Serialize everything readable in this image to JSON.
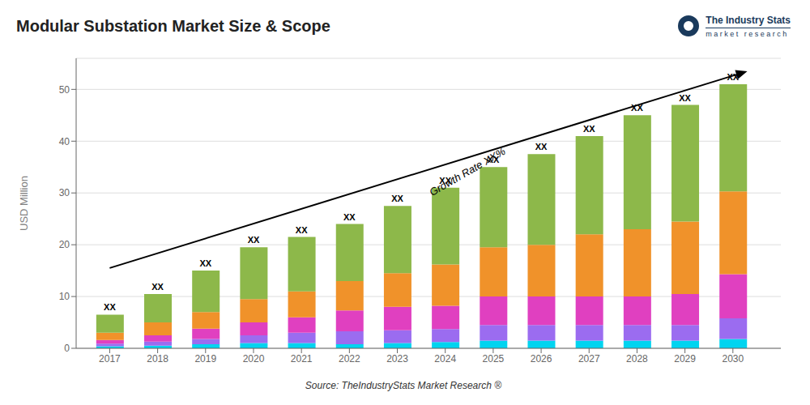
{
  "chart_data": {
    "type": "bar",
    "title": "Modular Substation Market Size & Scope",
    "ylabel": "USD Million",
    "source": "Source: TheIndustryStats Market Research ®",
    "logo": [
      "The Industry Stats",
      "m a r k e t   r e s e a r c h"
    ],
    "x": [
      2017,
      2018,
      2019,
      2020,
      2021,
      2022,
      2023,
      2024,
      2025,
      2026,
      2027,
      2028,
      2029,
      2030
    ],
    "series": [
      {
        "color": "#00d4f0",
        "values": [
          0.4,
          0.5,
          0.8,
          1.0,
          1.0,
          0.8,
          1.0,
          1.2,
          1.5,
          1.5,
          1.5,
          1.5,
          1.5,
          1.8
        ]
      },
      {
        "color": "#9b6cf0",
        "values": [
          0.5,
          0.8,
          1.0,
          1.5,
          2.0,
          2.5,
          2.5,
          2.5,
          3.0,
          3.0,
          3.0,
          3.0,
          3.0,
          4.0
        ]
      },
      {
        "color": "#e040c0",
        "values": [
          0.7,
          1.2,
          2.0,
          2.5,
          3.0,
          4.0,
          4.5,
          4.5,
          5.5,
          5.5,
          5.5,
          5.5,
          6.0,
          8.5
        ]
      },
      {
        "color": "#f0922a",
        "values": [
          1.4,
          2.5,
          3.2,
          4.5,
          5.0,
          5.7,
          6.5,
          8.0,
          9.5,
          10.0,
          12.0,
          13.0,
          14.0,
          16.0
        ]
      },
      {
        "color": "#8db84a",
        "values": [
          3.5,
          5.5,
          8.0,
          10.0,
          10.5,
          11.0,
          13.0,
          14.8,
          15.5,
          17.5,
          19.0,
          22.0,
          22.5,
          20.7
        ]
      }
    ],
    "stacked": true,
    "xlim": [
      2016.3,
      2031.0
    ],
    "xticks": [
      2017,
      2018,
      2019,
      2020,
      2021,
      2022,
      2023,
      2024,
      2025,
      2026,
      2027,
      2028,
      2029,
      2030
    ],
    "ylim": [
      0,
      56
    ],
    "yticks": [
      0,
      10,
      20,
      30,
      40,
      50
    ],
    "grid": true,
    "annotations": [
      {
        "text": "Growth Rate XX%",
        "x": 2024.5,
        "y": 33.5,
        "arrow": {
          "x": [
            2017.0,
            2030.3
          ],
          "y": [
            15.5,
            53.5
          ]
        }
      },
      {
        "text": "XX",
        "x": 2017,
        "y": 6.5
      },
      {
        "text": "XX",
        "x": 2018,
        "y": 10.5
      },
      {
        "text": "XX",
        "x": 2019,
        "y": 15.0
      },
      {
        "text": "XX",
        "x": 2020,
        "y": 19.5
      },
      {
        "text": "XX",
        "x": 2021,
        "y": 21.5
      },
      {
        "text": "XX",
        "x": 2022,
        "y": 24.0
      },
      {
        "text": "XX",
        "x": 2023,
        "y": 27.5
      },
      {
        "text": "XX",
        "x": 2024,
        "y": 31.0
      },
      {
        "text": "XX",
        "x": 2025,
        "y": 35.0
      },
      {
        "text": "XX",
        "x": 2026,
        "y": 37.5
      },
      {
        "text": "XX",
        "x": 2027,
        "y": 41.0
      },
      {
        "text": "XX",
        "x": 2028,
        "y": 45.0
      },
      {
        "text": "XX",
        "x": 2029,
        "y": 47.0
      },
      {
        "text": "XX",
        "x": 2030,
        "y": 51.0
      }
    ]
  }
}
